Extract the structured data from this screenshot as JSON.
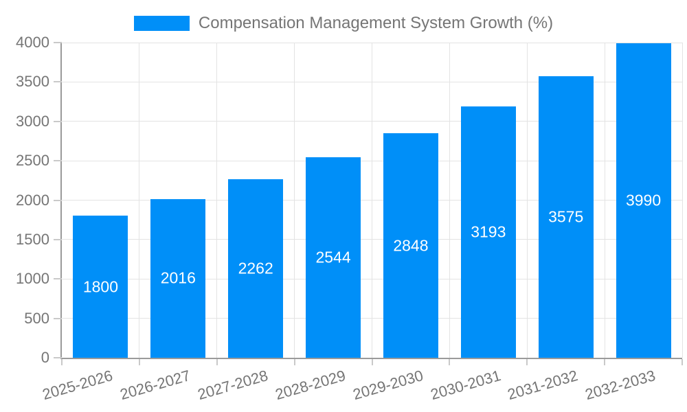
{
  "legend": {
    "items": [
      {
        "label": "Compensation Management System Growth (%)",
        "color": "#008FF8"
      }
    ]
  },
  "chart_data": {
    "type": "bar",
    "title": "Compensation Management System Growth (%)",
    "categories": [
      "2025-2026",
      "2026-2027",
      "2027-2028",
      "2028-2029",
      "2029-2030",
      "2030-2031",
      "2031-2032",
      "2032-2033"
    ],
    "series": [
      {
        "name": "Compensation Management System Growth (%)",
        "color": "#008FF8",
        "values": [
          1800,
          2016,
          2262,
          2544,
          2848,
          3193,
          3575,
          3990
        ]
      }
    ],
    "value_labels": [
      1800,
      2016,
      2262,
      2544,
      2848,
      3193,
      3575,
      3990
    ],
    "xlabel": "",
    "ylabel": "",
    "ylim": [
      0,
      4000
    ],
    "yticks": [
      0,
      500,
      1000,
      1500,
      2000,
      2500,
      3000,
      3500,
      4000
    ],
    "grid": true,
    "legend_position": "top",
    "xtick_rotation_deg": -16
  },
  "colors": {
    "bar": "#008FF8",
    "axis_line": "#9A9A9A",
    "grid_line": "#E3E3E3",
    "tick_mark": "#C9C9C9",
    "tick_label": "#757575",
    "value_label": "#FFFFFF",
    "background": "#FFFFFF"
  }
}
